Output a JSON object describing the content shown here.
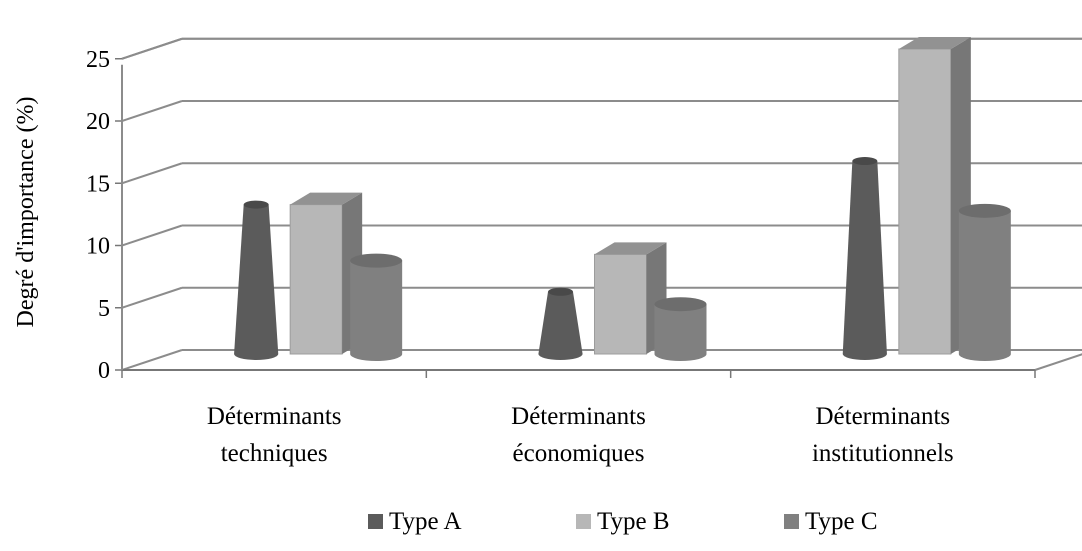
{
  "chart_data": {
    "type": "bar",
    "ylabel": "Degré d'importance (%)",
    "ylim": [
      0,
      25
    ],
    "yticks": [
      "0",
      "5",
      "10",
      "15",
      "20",
      "25"
    ],
    "categories": [
      "Déterminants techniques",
      "Déterminants économiques",
      "Déterminants institutionnels"
    ],
    "category_labels": [
      [
        "Déterminants",
        "techniques"
      ],
      [
        "Déterminants",
        "économiques"
      ],
      [
        "Déterminants",
        "institutionnels"
      ]
    ],
    "series": [
      {
        "name": "Type A",
        "shape": "cone",
        "color": "#5b5b5b",
        "values": [
          12,
          5,
          15.5
        ]
      },
      {
        "name": "Type B",
        "shape": "box",
        "color": "#b7b7b7",
        "values": [
          12,
          8,
          24.5
        ]
      },
      {
        "name": "Type C",
        "shape": "cylinder",
        "color": "#808080",
        "values": [
          7.5,
          4,
          11.5
        ]
      }
    ],
    "grid": true,
    "legend_position": "bottom"
  }
}
